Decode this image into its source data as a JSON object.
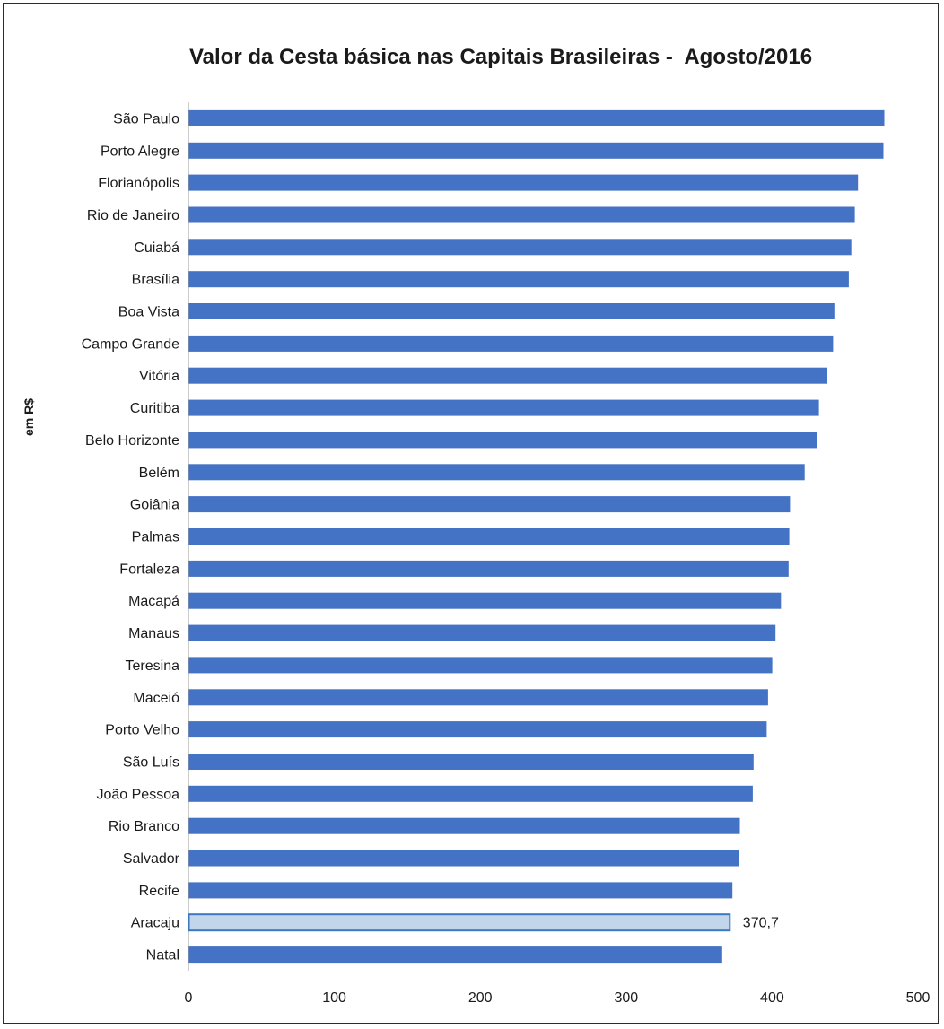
{
  "chart_data": {
    "type": "bar",
    "orientation": "horizontal",
    "title": "Valor da Cesta básica nas Capitais Brasileiras -  Agosto/2016",
    "ylabel": "em R$",
    "xlabel": "",
    "xlim": [
      0,
      500
    ],
    "xticks": [
      "0",
      "100",
      "200",
      "300",
      "400",
      "500"
    ],
    "grid": false,
    "categories": [
      "São Paulo",
      "Porto Alegre",
      "Florianópolis",
      "Rio de Janeiro",
      "Cuiabá",
      "Brasília",
      "Boa Vista",
      "Campo Grande",
      "Vitória",
      "Curitiba",
      "Belo Horizonte",
      "Belém",
      "Goiânia",
      "Palmas",
      "Fortaleza",
      "Macapá",
      "Manaus",
      "Teresina",
      "Maceió",
      "Porto Velho",
      "São Luís",
      "João Pessoa",
      "Rio Branco",
      "Salvador",
      "Recife",
      "Aracaju",
      "Natal"
    ],
    "values": [
      476.6,
      476.0,
      458.6,
      456.4,
      454.0,
      452.3,
      442.4,
      441.5,
      437.6,
      431.8,
      430.7,
      422.0,
      412.0,
      411.5,
      411.0,
      405.8,
      402.0,
      399.8,
      396.9,
      396.0,
      387.0,
      386.5,
      377.6,
      377.0,
      372.5,
      370.7,
      365.5
    ],
    "highlight_index": 25,
    "data_labels": [
      "",
      "",
      "",
      "",
      "",
      "",
      "",
      "",
      "",
      "",
      "",
      "",
      "",
      "",
      "",
      "",
      "",
      "",
      "",
      "",
      "",
      "",
      "",
      "",
      "",
      "370,7",
      ""
    ],
    "colors": {
      "bar": "#4472c4",
      "bar_highlight": "#c3d5ea",
      "bar_highlight_stroke": "#3a78c2"
    }
  }
}
